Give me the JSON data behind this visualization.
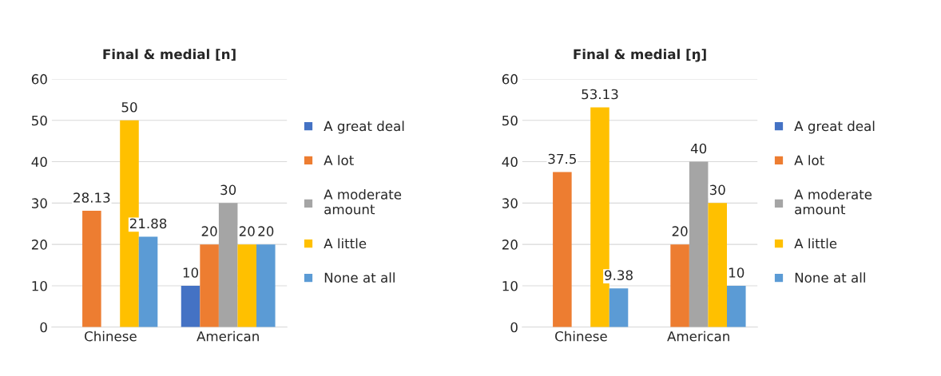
{
  "chart_data": [
    {
      "type": "bar",
      "title": "Final & medial [n]",
      "categories": [
        "Chinese",
        "American"
      ],
      "ylim": [
        0,
        60
      ],
      "yticks": [
        0,
        10,
        20,
        30,
        40,
        50,
        60
      ],
      "grid": "y",
      "legend": "right",
      "series": [
        {
          "name": "A great deal",
          "color": "#4472c4",
          "values": [
            null,
            10
          ],
          "value_labels": [
            null,
            "10"
          ]
        },
        {
          "name": "A lot",
          "color": "#ed7d31",
          "values": [
            28.13,
            20
          ],
          "value_labels": [
            "28.13",
            "20"
          ]
        },
        {
          "name": "A moderate amount",
          "color": "#a5a5a5",
          "values": [
            null,
            30
          ],
          "value_labels": [
            null,
            "30"
          ]
        },
        {
          "name": "A little",
          "color": "#ffc000",
          "values": [
            50,
            20
          ],
          "value_labels": [
            "50",
            "20"
          ]
        },
        {
          "name": "None at all",
          "color": "#5b9bd5",
          "values": [
            21.88,
            20
          ],
          "value_labels": [
            "21.88",
            "20"
          ]
        }
      ]
    },
    {
      "type": "bar",
      "title": "Final & medial [ŋ]",
      "categories": [
        "Chinese",
        "American"
      ],
      "ylim": [
        0,
        60
      ],
      "yticks": [
        0,
        10,
        20,
        30,
        40,
        50,
        60
      ],
      "grid": "y",
      "legend": "right",
      "series": [
        {
          "name": "A great deal",
          "color": "#4472c4",
          "values": [
            null,
            null
          ],
          "value_labels": [
            null,
            null
          ]
        },
        {
          "name": "A lot",
          "color": "#ed7d31",
          "values": [
            37.5,
            20
          ],
          "value_labels": [
            "37.5",
            "20"
          ]
        },
        {
          "name": "A moderate amount",
          "color": "#a5a5a5",
          "values": [
            null,
            40
          ],
          "value_labels": [
            null,
            "40"
          ]
        },
        {
          "name": "A little",
          "color": "#ffc000",
          "values": [
            53.13,
            30
          ],
          "value_labels": [
            "53.13",
            "30"
          ]
        },
        {
          "name": "None at all",
          "color": "#5b9bd5",
          "values": [
            9.38,
            10
          ],
          "value_labels": [
            "9.38",
            "10"
          ]
        }
      ]
    }
  ]
}
